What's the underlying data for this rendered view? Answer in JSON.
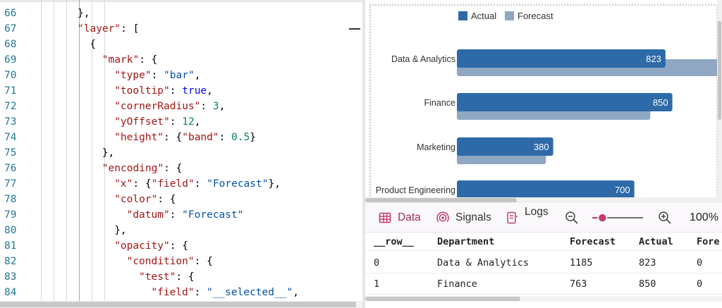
{
  "editor": {
    "lines": [
      {
        "n": "66",
        "indent": 4,
        "tokens": [
          {
            "t": "},",
            "c": "p"
          }
        ]
      },
      {
        "n": "67",
        "indent": 4,
        "tokens": [
          {
            "t": "\"layer\"",
            "c": "key"
          },
          {
            "t": ": [",
            "c": "p"
          }
        ]
      },
      {
        "n": "68",
        "indent": 6,
        "tokens": [
          {
            "t": "{",
            "c": "p"
          }
        ]
      },
      {
        "n": "69",
        "indent": 8,
        "tokens": [
          {
            "t": "\"mark\"",
            "c": "key"
          },
          {
            "t": ": {",
            "c": "p"
          }
        ]
      },
      {
        "n": "70",
        "indent": 10,
        "tokens": [
          {
            "t": "\"type\"",
            "c": "key"
          },
          {
            "t": ": ",
            "c": "p"
          },
          {
            "t": "\"bar\"",
            "c": "str"
          },
          {
            "t": ",",
            "c": "p"
          }
        ]
      },
      {
        "n": "71",
        "indent": 10,
        "tokens": [
          {
            "t": "\"tooltip\"",
            "c": "key"
          },
          {
            "t": ": ",
            "c": "p"
          },
          {
            "t": "true",
            "c": "bool"
          },
          {
            "t": ",",
            "c": "p"
          }
        ]
      },
      {
        "n": "72",
        "indent": 10,
        "tokens": [
          {
            "t": "\"cornerRadius\"",
            "c": "key"
          },
          {
            "t": ": ",
            "c": "p"
          },
          {
            "t": "3",
            "c": "num"
          },
          {
            "t": ",",
            "c": "p"
          }
        ]
      },
      {
        "n": "73",
        "indent": 10,
        "tokens": [
          {
            "t": "\"yOffset\"",
            "c": "key"
          },
          {
            "t": ": ",
            "c": "p"
          },
          {
            "t": "12",
            "c": "num"
          },
          {
            "t": ",",
            "c": "p"
          }
        ]
      },
      {
        "n": "74",
        "indent": 10,
        "tokens": [
          {
            "t": "\"height\"",
            "c": "key"
          },
          {
            "t": ": {",
            "c": "p"
          },
          {
            "t": "\"band\"",
            "c": "key"
          },
          {
            "t": ": ",
            "c": "p"
          },
          {
            "t": "0.5",
            "c": "num"
          },
          {
            "t": "}",
            "c": "p"
          }
        ]
      },
      {
        "n": "75",
        "indent": 8,
        "tokens": [
          {
            "t": "},",
            "c": "p"
          }
        ]
      },
      {
        "n": "76",
        "indent": 8,
        "tokens": [
          {
            "t": "\"encoding\"",
            "c": "key"
          },
          {
            "t": ": {",
            "c": "p"
          }
        ]
      },
      {
        "n": "77",
        "indent": 10,
        "tokens": [
          {
            "t": "\"x\"",
            "c": "key"
          },
          {
            "t": ": {",
            "c": "p"
          },
          {
            "t": "\"field\"",
            "c": "key"
          },
          {
            "t": ": ",
            "c": "p"
          },
          {
            "t": "\"Forecast\"",
            "c": "str"
          },
          {
            "t": "},",
            "c": "p"
          }
        ]
      },
      {
        "n": "78",
        "indent": 10,
        "tokens": [
          {
            "t": "\"color\"",
            "c": "key"
          },
          {
            "t": ": {",
            "c": "p"
          }
        ]
      },
      {
        "n": "79",
        "indent": 12,
        "tokens": [
          {
            "t": "\"datum\"",
            "c": "key"
          },
          {
            "t": ": ",
            "c": "p"
          },
          {
            "t": "\"Forecast\"",
            "c": "str"
          }
        ]
      },
      {
        "n": "80",
        "indent": 10,
        "tokens": [
          {
            "t": "},",
            "c": "p"
          }
        ]
      },
      {
        "n": "81",
        "indent": 10,
        "tokens": [
          {
            "t": "\"opacity\"",
            "c": "key"
          },
          {
            "t": ": {",
            "c": "p"
          }
        ]
      },
      {
        "n": "82",
        "indent": 12,
        "tokens": [
          {
            "t": "\"condition\"",
            "c": "key"
          },
          {
            "t": ": {",
            "c": "p"
          }
        ]
      },
      {
        "n": "83",
        "indent": 14,
        "tokens": [
          {
            "t": "\"test\"",
            "c": "key"
          },
          {
            "t": ": {",
            "c": "p"
          }
        ]
      },
      {
        "n": "84",
        "indent": 16,
        "tokens": [
          {
            "t": "\"field\"",
            "c": "key"
          },
          {
            "t": ": ",
            "c": "p"
          },
          {
            "t": "\"__selected__\"",
            "c": "str"
          },
          {
            "t": ",",
            "c": "p"
          }
        ]
      }
    ]
  },
  "chart_data": {
    "type": "bar",
    "orientation": "horizontal",
    "legend": {
      "position": "top",
      "entries": [
        "Actual",
        "Forecast"
      ]
    },
    "categories": [
      "Data & Analytics",
      "Finance",
      "Marketing",
      "Product Engineering"
    ],
    "series": [
      {
        "name": "Actual",
        "color": "#2e6aa8",
        "values": [
          823,
          850,
          380,
          700
        ],
        "labels": [
          "823",
          "850",
          "380",
          "700"
        ]
      },
      {
        "name": "Forecast",
        "color": "#8fa7c3",
        "values": [
          1185,
          763,
          351,
          null
        ]
      }
    ],
    "axis_visible": false
  },
  "tabs": {
    "data_label": "Data",
    "signals_label": "Signals",
    "logs_label": "Logs",
    "zoom_level": "100%",
    "zoom_value": 0.2
  },
  "table": {
    "columns": [
      "__row__",
      "Department",
      "Forecast",
      "Actual",
      "Fore"
    ],
    "rows": [
      [
        "0",
        "Data & Analytics",
        "1185",
        "823",
        "0"
      ],
      [
        "1",
        "Finance",
        "763",
        "850",
        "0"
      ]
    ]
  },
  "colors": {
    "accent": "#c43b70",
    "actual": "#2e6aa8",
    "forecast": "#8fa7c3",
    "line_number": "#237893"
  }
}
